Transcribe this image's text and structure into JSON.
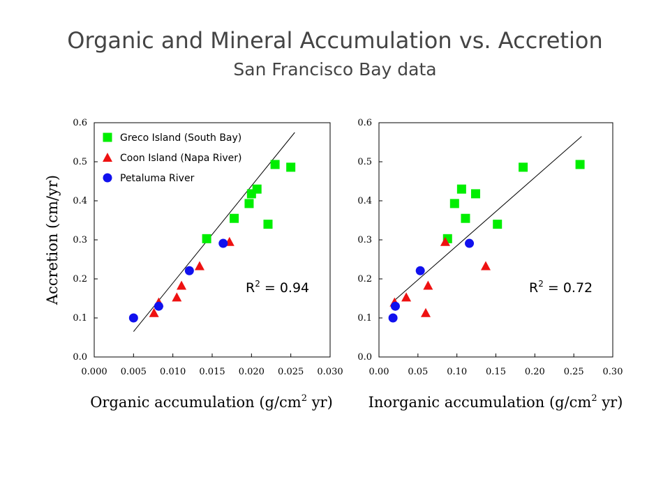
{
  "title": "Organic and Mineral Accumulation vs. Accretion",
  "subtitle": "San Francisco Bay data",
  "ylabel": "Accretion (cm/yr)",
  "colors": {
    "greco": "#00ee00",
    "coon": "#ee1111",
    "petaluma": "#1111ee",
    "line": "#000000"
  },
  "legend": [
    {
      "label": "Greco Island (South Bay)",
      "marker": "square",
      "series": "greco"
    },
    {
      "label": "Coon Island (Napa River)",
      "marker": "triangle",
      "series": "coon"
    },
    {
      "label": "Petaluma River",
      "marker": "circle",
      "series": "petaluma"
    }
  ],
  "chart_data": [
    {
      "type": "scatter",
      "xlabel_main": "Organic accumulation (g/cm",
      "xlabel_sup": "2",
      "xlabel_end": " yr)",
      "xlim": [
        0.0,
        0.03
      ],
      "ylim": [
        0.0,
        0.6
      ],
      "xticks": [
        "0.000",
        "0.005",
        "0.010",
        "0.015",
        "0.020",
        "0.025",
        "0.030"
      ],
      "yticks": [
        "0.0",
        "0.1",
        "0.2",
        "0.3",
        "0.4",
        "0.5",
        "0.6"
      ],
      "r2_prefix": "R",
      "r2_sup": "2",
      "r2_value": " = 0.94",
      "fit_line": [
        [
          0.005,
          0.065
        ],
        [
          0.0255,
          0.575
        ]
      ],
      "series": [
        {
          "key": "greco",
          "name": "Greco Island (South Bay)",
          "marker": "square",
          "points": [
            [
              0.0143,
              0.303
            ],
            [
              0.0178,
              0.355
            ],
            [
              0.0197,
              0.393
            ],
            [
              0.02,
              0.418
            ],
            [
              0.0207,
              0.43
            ],
            [
              0.0221,
              0.34
            ],
            [
              0.023,
              0.493
            ],
            [
              0.025,
              0.486
            ]
          ]
        },
        {
          "key": "coon",
          "name": "Coon Island (Napa River)",
          "marker": "triangle",
          "points": [
            [
              0.0076,
              0.113
            ],
            [
              0.0082,
              0.14
            ],
            [
              0.0105,
              0.153
            ],
            [
              0.0111,
              0.183
            ],
            [
              0.0134,
              0.233
            ],
            [
              0.0172,
              0.295
            ]
          ]
        },
        {
          "key": "petaluma",
          "name": "Petaluma River",
          "marker": "circle",
          "points": [
            [
              0.005,
              0.1
            ],
            [
              0.0082,
              0.13
            ],
            [
              0.0121,
              0.221
            ],
            [
              0.0164,
              0.291
            ]
          ]
        }
      ]
    },
    {
      "type": "scatter",
      "xlabel_main": "Inorganic accumulation (g/cm",
      "xlabel_sup": "2",
      "xlabel_end": " yr)",
      "xlim": [
        0.0,
        0.3
      ],
      "ylim": [
        0.0,
        0.6
      ],
      "xticks": [
        "0.00",
        "0.05",
        "0.10",
        "0.15",
        "0.20",
        "0.25",
        "0.30"
      ],
      "yticks": [
        "0.0",
        "0.1",
        "0.2",
        "0.3",
        "0.4",
        "0.5",
        "0.6"
      ],
      "r2_prefix": "R",
      "r2_sup": "2",
      "r2_value": " = 0.72",
      "fit_line": [
        [
          0.02,
          0.145
        ],
        [
          0.26,
          0.565
        ]
      ],
      "series": [
        {
          "key": "greco",
          "name": "Greco Island (South Bay)",
          "marker": "square",
          "points": [
            [
              0.088,
              0.303
            ],
            [
              0.097,
              0.393
            ],
            [
              0.106,
              0.43
            ],
            [
              0.111,
              0.355
            ],
            [
              0.124,
              0.418
            ],
            [
              0.152,
              0.34
            ],
            [
              0.185,
              0.486
            ],
            [
              0.258,
              0.493
            ]
          ]
        },
        {
          "key": "coon",
          "name": "Coon Island (Napa River)",
          "marker": "triangle",
          "points": [
            [
              0.02,
              0.14
            ],
            [
              0.035,
              0.153
            ],
            [
              0.06,
              0.113
            ],
            [
              0.063,
              0.183
            ],
            [
              0.085,
              0.295
            ],
            [
              0.137,
              0.233
            ]
          ]
        },
        {
          "key": "petaluma",
          "name": "Petaluma River",
          "marker": "circle",
          "points": [
            [
              0.018,
              0.1
            ],
            [
              0.021,
              0.13
            ],
            [
              0.053,
              0.221
            ],
            [
              0.116,
              0.291
            ]
          ]
        }
      ]
    }
  ]
}
